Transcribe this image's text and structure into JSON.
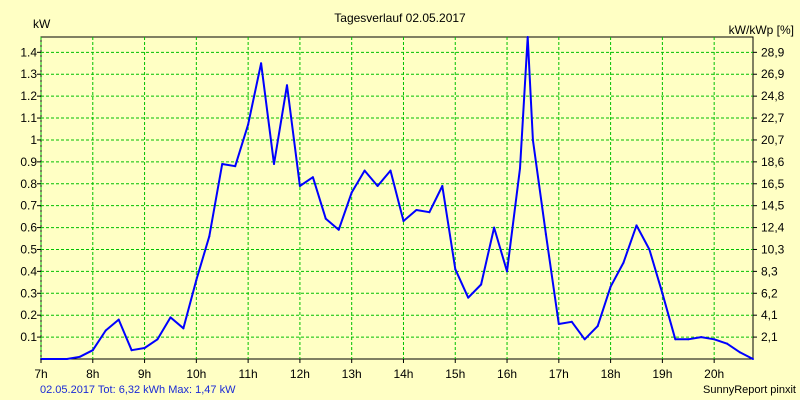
{
  "chart_data": {
    "type": "line",
    "title": "Tagesverlauf 02.05.2017",
    "ylabel_left": "kW",
    "ylabel_right": "kW/kWp [%]",
    "footer_text": "02.05.2017 Tot: 6,32 kWh Max: 1,47 kW",
    "credit_text": "SunnyReport pinxit",
    "grid": true,
    "xlim": [
      7.0,
      20.75
    ],
    "ylim": [
      0,
      1.47
    ],
    "x_ticks": [
      7,
      8,
      9,
      10,
      11,
      12,
      13,
      14,
      15,
      16,
      17,
      18,
      19,
      20
    ],
    "x_tick_labels": [
      "7h",
      "8h",
      "9h",
      "10h",
      "11h",
      "12h",
      "13h",
      "14h",
      "15h",
      "16h",
      "17h",
      "18h",
      "19h",
      "20h"
    ],
    "y_ticks": [
      0.1,
      0.2,
      0.3,
      0.4,
      0.5,
      0.6,
      0.7,
      0.8,
      0.9,
      1.0,
      1.1,
      1.2,
      1.3,
      1.4
    ],
    "y_tick_labels": [
      "0.1",
      "0.2",
      "0.3",
      "0.4",
      "0.5",
      "0.6",
      "0.7",
      "0.8",
      "0.9",
      "1",
      "1.1",
      "1.2",
      "1.3",
      "1.4"
    ],
    "y_right_ticks": [
      0.1,
      0.2,
      0.3,
      0.4,
      0.5,
      0.6,
      0.7,
      0.8,
      0.9,
      1.0,
      1.1,
      1.2,
      1.3,
      1.4
    ],
    "y_right_tick_labels": [
      "2,1",
      "4,1",
      "6,2",
      "8,3",
      "10,3",
      "12,4",
      "14,5",
      "16,5",
      "18,6",
      "20,7",
      "22,7",
      "24,8",
      "26,9",
      "28,9"
    ],
    "series": [
      {
        "color": "#0000ff",
        "x": [
          7.0,
          7.25,
          7.5,
          7.75,
          8.0,
          8.25,
          8.5,
          8.75,
          9.0,
          9.25,
          9.5,
          9.75,
          10.0,
          10.25,
          10.5,
          10.75,
          11.0,
          11.25,
          11.5,
          11.75,
          12.0,
          12.25,
          12.5,
          12.75,
          13.0,
          13.25,
          13.5,
          13.75,
          14.0,
          14.25,
          14.5,
          14.75,
          15.0,
          15.25,
          15.5,
          15.75,
          16.0,
          16.25,
          16.4,
          16.5,
          16.75,
          17.0,
          17.25,
          17.5,
          17.75,
          18.0,
          18.25,
          18.5,
          18.75,
          19.0,
          19.25,
          19.5,
          19.75,
          20.0,
          20.25,
          20.5,
          20.75
        ],
        "y": [
          0.0,
          0.0,
          0.0,
          0.01,
          0.04,
          0.13,
          0.18,
          0.04,
          0.05,
          0.09,
          0.19,
          0.14,
          0.36,
          0.56,
          0.89,
          0.88,
          1.07,
          1.35,
          0.89,
          1.25,
          0.79,
          0.83,
          0.64,
          0.59,
          0.76,
          0.86,
          0.79,
          0.86,
          0.63,
          0.68,
          0.67,
          0.79,
          0.41,
          0.28,
          0.34,
          0.6,
          0.4,
          0.87,
          1.47,
          1.0,
          0.57,
          0.16,
          0.17,
          0.09,
          0.15,
          0.33,
          0.44,
          0.61,
          0.5,
          0.3,
          0.09,
          0.09,
          0.1,
          0.09,
          0.07,
          0.03,
          0.0
        ]
      }
    ]
  }
}
